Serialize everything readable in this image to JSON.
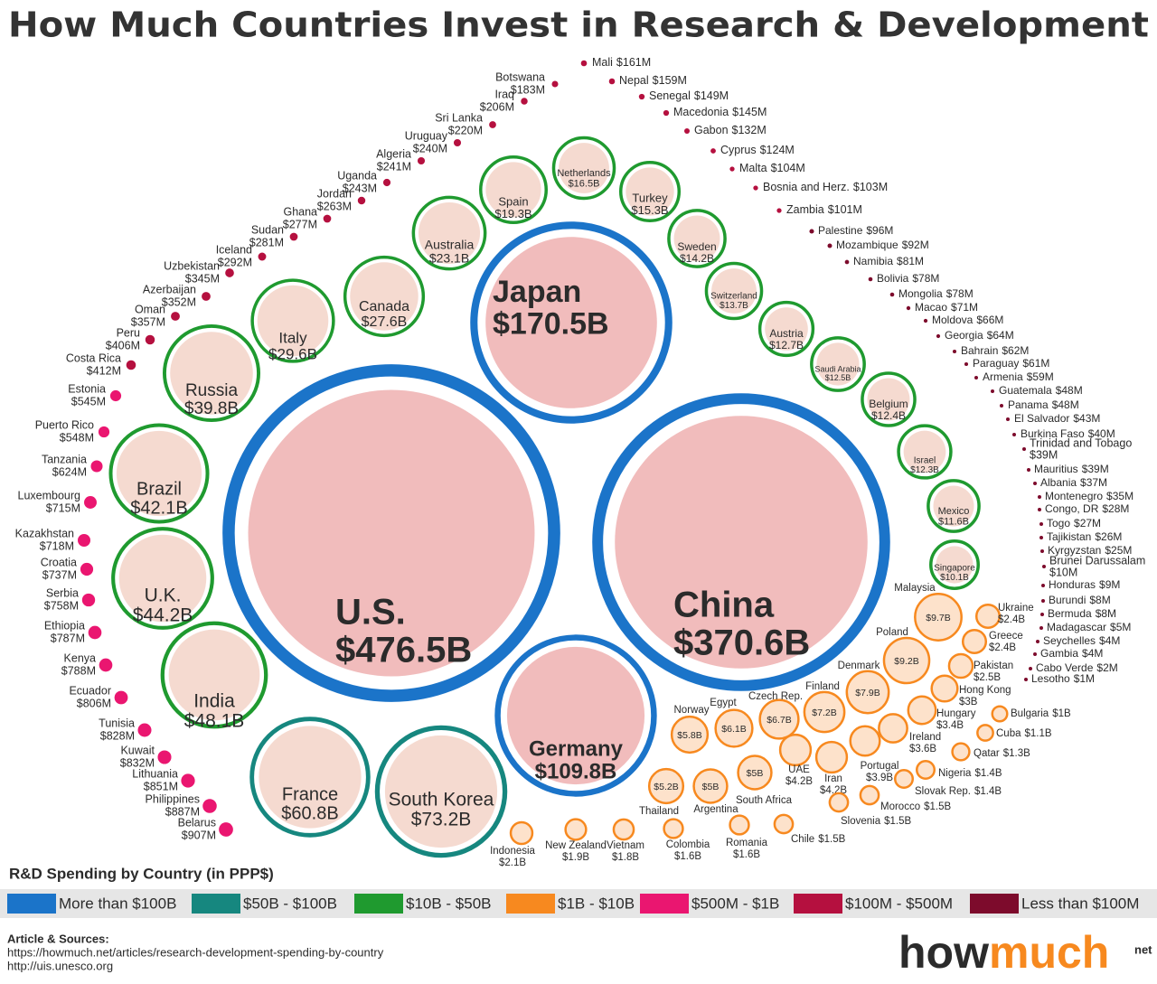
{
  "chart_data": {
    "type": "bubble",
    "title": "How Much Countries Invest in Research & Development",
    "legend_title": "R&D Spending by Country (in PPP$)",
    "series": [
      {
        "name": "More than $100B",
        "color": "#1b74c9",
        "categories": [
          "U.S.",
          "China",
          "Japan",
          "Germany"
        ],
        "values": [
          476.5,
          370.6,
          170.5,
          109.8
        ],
        "value_labels": [
          "$476.5B",
          "$370.6B",
          "$170.5B",
          "$109.8B"
        ]
      },
      {
        "name": "$50B - $100B",
        "color": "#16877f",
        "categories": [
          "South Korea",
          "France"
        ],
        "values": [
          73.2,
          60.8
        ],
        "value_labels": [
          "$73.2B",
          "$60.8B"
        ]
      },
      {
        "name": "$10B - $50B",
        "color": "#1f9a2f",
        "categories": [
          "India",
          "U.K.",
          "Brazil",
          "Russia",
          "Italy",
          "Canada",
          "Australia",
          "Spain",
          "Netherlands",
          "Turkey",
          "Sweden",
          "Switzerland",
          "Austria",
          "Saudi Arabia",
          "Belgium",
          "Israel",
          "Mexico",
          "Singapore"
        ],
        "values": [
          48.1,
          44.2,
          42.1,
          39.8,
          29.6,
          27.6,
          23.1,
          19.3,
          16.5,
          15.3,
          14.2,
          13.7,
          12.7,
          12.5,
          12.4,
          12.3,
          11.6,
          10.1
        ],
        "value_labels": [
          "$48.1B",
          "$44.2B",
          "$42.1B",
          "$39.8B",
          "$29.6B",
          "$27.6B",
          "$23.1B",
          "$19.3B",
          "$16.5B",
          "$15.3B",
          "$14.2B",
          "$13.7B",
          "$12.7B",
          "$12.5B",
          "$12.4B",
          "$12.3B",
          "$11.6B",
          "$10.1B"
        ]
      },
      {
        "name": "$1B - $10B",
        "color": "#f7891f",
        "categories": [
          "Malaysia",
          "Poland",
          "Denmark",
          "Finland",
          "Czech Rep.",
          "Egypt",
          "Norway",
          "Thailand",
          "Argentina",
          "South Africa",
          "UAE",
          "Iran",
          "Portugal",
          "Ireland",
          "Hungary",
          "Hong Kong",
          "Pakistan",
          "Greece",
          "Ukraine",
          "Indonesia",
          "New Zealand",
          "Vietnam",
          "Colombia",
          "Romania",
          "Chile",
          "Slovenia",
          "Morocco",
          "Slovak Rep.",
          "Nigeria",
          "Qatar",
          "Cuba",
          "Bulgaria"
        ],
        "values": [
          9.7,
          9.2,
          7.9,
          7.2,
          6.7,
          6.1,
          5.8,
          5.2,
          5,
          5,
          4.2,
          4.2,
          3.9,
          3.6,
          3.4,
          3,
          2.5,
          2.4,
          2.4,
          2.1,
          1.9,
          1.8,
          1.6,
          1.6,
          1.5,
          1.5,
          1.5,
          1.4,
          1.4,
          1.3,
          1.1,
          1
        ],
        "value_labels": [
          "$9.7B",
          "$9.2B",
          "$7.9B",
          "$7.2B",
          "$6.7B",
          "$6.1B",
          "$5.8B",
          "$5.2B",
          "$5B",
          "$5B",
          "$4.2B",
          "$4.2B",
          "$3.9B",
          "$3.6B",
          "$3.4B",
          "$3B",
          "$2.5B",
          "$2.4B",
          "$2.4B",
          "$2.1B",
          "$1.9B",
          "$1.8B",
          "$1.6B",
          "$1.6B",
          "$1.5B",
          "$1.5B",
          "$1.5B",
          "$1.4B",
          "$1.4B",
          "$1.3B",
          "$1.1B",
          "$1B"
        ]
      },
      {
        "name": "$500M - $1B",
        "color": "#ea1670",
        "categories": [
          "Belarus",
          "Philippines",
          "Lithuania",
          "Kuwait",
          "Tunisia",
          "Ecuador",
          "Kenya",
          "Ethiopia",
          "Serbia",
          "Croatia",
          "Kazakhstan",
          "Luxembourg",
          "Tanzania",
          "Puerto Rico",
          "Estonia"
        ],
        "values": [
          0.907,
          0.887,
          0.851,
          0.832,
          0.828,
          0.806,
          0.788,
          0.787,
          0.758,
          0.737,
          0.718,
          0.715,
          0.624,
          0.548,
          0.545
        ],
        "value_labels": [
          "$907M",
          "$887M",
          "$851M",
          "$832M",
          "$828M",
          "$806M",
          "$788M",
          "$787M",
          "$758M",
          "$737M",
          "$718M",
          "$715M",
          "$624M",
          "$548M",
          "$545M"
        ]
      },
      {
        "name": "$100M - $500M",
        "color": "#b5103f",
        "categories": [
          "Costa Rica",
          "Peru",
          "Oman",
          "Azerbaijan",
          "Uzbekistan",
          "Iceland",
          "Sudan",
          "Ghana",
          "Jordan",
          "Uganda",
          "Algeria",
          "Uruguay",
          "Sri Lanka",
          "Iraq",
          "Botswana",
          "Mali",
          "Nepal",
          "Senegal",
          "Macedonia",
          "Gabon",
          "Cyprus",
          "Malta",
          "Bosnia and Herz.",
          "Zambia"
        ],
        "values": [
          0.412,
          0.406,
          0.357,
          0.352,
          0.345,
          0.292,
          0.281,
          0.277,
          0.263,
          0.243,
          0.241,
          0.24,
          0.22,
          0.206,
          0.183,
          0.161,
          0.159,
          0.149,
          0.145,
          0.132,
          0.124,
          0.104,
          0.103,
          0.101
        ],
        "value_labels": [
          "$412M",
          "$406M",
          "$357M",
          "$352M",
          "$345M",
          "$292M",
          "$281M",
          "$277M",
          "$263M",
          "$243M",
          "$241M",
          "$240M",
          "$220M",
          "$206M",
          "$183M",
          "$161M",
          "$159M",
          "$149M",
          "$145M",
          "$132M",
          "$124M",
          "$104M",
          "$103M",
          "$101M"
        ]
      },
      {
        "name": "Less than $100M",
        "color": "#7d0b2c",
        "categories": [
          "Palestine",
          "Mozambique",
          "Namibia",
          "Bolivia",
          "Mongolia",
          "Macao",
          "Moldova",
          "Georgia",
          "Bahrain",
          "Paraguay",
          "Armenia",
          "Guatemala",
          "Panama",
          "El Salvador",
          "Burkina Faso",
          "Trinidad and Tobago",
          "Mauritius",
          "Albania",
          "Montenegro",
          "Congo, DR",
          "Togo",
          "Tajikistan",
          "Kyrgyzstan",
          "Brunei Darussalam",
          "Honduras",
          "Burundi",
          "Bermuda",
          "Madagascar",
          "Seychelles",
          "Gambia",
          "Cabo Verde",
          "Lesotho"
        ],
        "values": [
          0.096,
          0.092,
          0.081,
          0.078,
          0.078,
          0.071,
          0.066,
          0.064,
          0.062,
          0.061,
          0.059,
          0.048,
          0.048,
          0.043,
          0.04,
          0.039,
          0.039,
          0.037,
          0.035,
          0.028,
          0.027,
          0.026,
          0.025,
          0.01,
          0.009,
          0.008,
          0.008,
          0.005,
          0.004,
          0.004,
          0.002,
          0.001
        ],
        "value_labels": [
          "$96M",
          "$92M",
          "$81M",
          "$78M",
          "$78M",
          "$71M",
          "$66M",
          "$64M",
          "$62M",
          "$61M",
          "$59M",
          "$48M",
          "$48M",
          "$43M",
          "$40M",
          "$39M",
          "$39M",
          "$37M",
          "$35M",
          "$28M",
          "$27M",
          "$26M",
          "$25M",
          "$10M",
          "$9M",
          "$8M",
          "$8M",
          "$5M",
          "$4M",
          "$4M",
          "$2M",
          "$1M"
        ]
      }
    ]
  },
  "footer": {
    "heading": "Article & Sources:",
    "sources": [
      "https://howmuch.net/articles/research-development-spending-by-country",
      "http://uis.unesco.org"
    ],
    "logo": [
      "how",
      "much",
      "net"
    ]
  }
}
